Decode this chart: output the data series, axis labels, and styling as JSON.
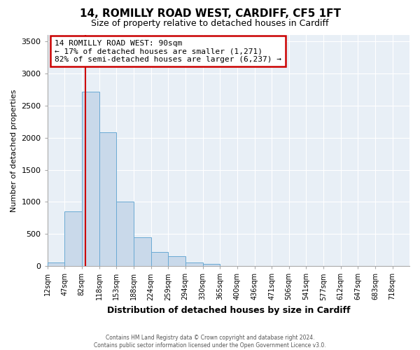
{
  "title": "14, ROMILLY ROAD WEST, CARDIFF, CF5 1FT",
  "subtitle": "Size of property relative to detached houses in Cardiff",
  "xlabel": "Distribution of detached houses by size in Cardiff",
  "ylabel": "Number of detached properties",
  "bar_color": "#c9d9ea",
  "bar_edge_color": "#6aaad4",
  "vline_x": 90,
  "vline_color": "#cc0000",
  "categories": [
    "12sqm",
    "47sqm",
    "82sqm",
    "118sqm",
    "153sqm",
    "188sqm",
    "224sqm",
    "259sqm",
    "294sqm",
    "330sqm",
    "365sqm",
    "400sqm",
    "436sqm",
    "471sqm",
    "506sqm",
    "541sqm",
    "577sqm",
    "612sqm",
    "647sqm",
    "683sqm",
    "718sqm"
  ],
  "bin_edges": [
    12,
    47,
    82,
    118,
    153,
    188,
    224,
    259,
    294,
    330,
    365,
    400,
    436,
    471,
    506,
    541,
    577,
    612,
    647,
    683,
    718,
    753
  ],
  "bar_heights": [
    55,
    850,
    2720,
    2080,
    1010,
    450,
    215,
    150,
    55,
    30,
    0,
    0,
    0,
    0,
    0,
    0,
    0,
    0,
    0,
    0,
    0
  ],
  "ylim": [
    0,
    3600
  ],
  "yticks": [
    0,
    500,
    1000,
    1500,
    2000,
    2500,
    3000,
    3500
  ],
  "annotation_title": "14 ROMILLY ROAD WEST: 90sqm",
  "annotation_line1": "← 17% of detached houses are smaller (1,271)",
  "annotation_line2": "82% of semi-detached houses are larger (6,237) →",
  "footer1": "Contains HM Land Registry data © Crown copyright and database right 2024.",
  "footer2": "Contains public sector information licensed under the Open Government Licence v3.0.",
  "background_color": "#ffffff",
  "axes_bg_color": "#e8eff6",
  "grid_color": "#ffffff"
}
